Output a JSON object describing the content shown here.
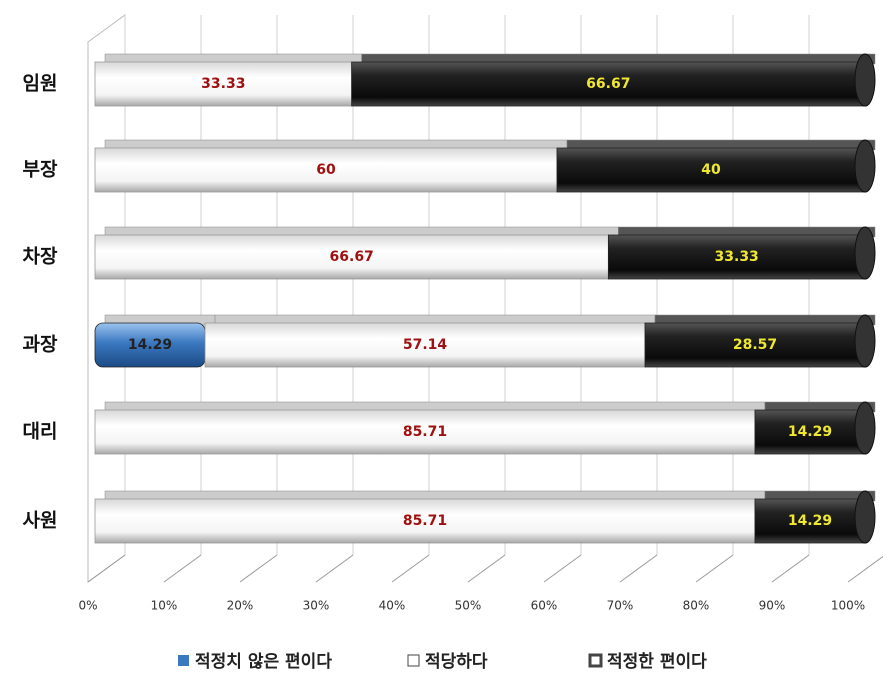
{
  "chart_data": {
    "type": "stacked-bar-horizontal",
    "categories": [
      "임원",
      "부장",
      "차장",
      "과장",
      "대리",
      "사원"
    ],
    "series": [
      {
        "name": "적정치 않은 편이다",
        "color": "#3a78c0",
        "values": [
          0,
          0,
          0,
          14.29,
          0,
          0
        ]
      },
      {
        "name": "적당하다",
        "color": "#ffffff",
        "values": [
          33.33,
          60,
          66.67,
          57.14,
          85.71,
          85.71
        ]
      },
      {
        "name": "적정한 편이다",
        "color": "#111111",
        "values": [
          66.67,
          40,
          33.33,
          28.57,
          14.29,
          14.29
        ]
      }
    ],
    "xlim": [
      0,
      100
    ],
    "xticks": [
      {
        "value": 0,
        "label": "0%"
      },
      {
        "value": 10,
        "label": "10%"
      },
      {
        "value": 20,
        "label": "20%"
      },
      {
        "value": 30,
        "label": "30%"
      },
      {
        "value": 40,
        "label": "40%"
      },
      {
        "value": 50,
        "label": "50%"
      },
      {
        "value": 60,
        "label": "60%"
      },
      {
        "value": 70,
        "label": "70%"
      },
      {
        "value": 80,
        "label": "80%"
      },
      {
        "value": 90,
        "label": "90%"
      },
      {
        "value": 100,
        "label": "100%"
      }
    ],
    "grid": true,
    "legend": "bottom"
  }
}
